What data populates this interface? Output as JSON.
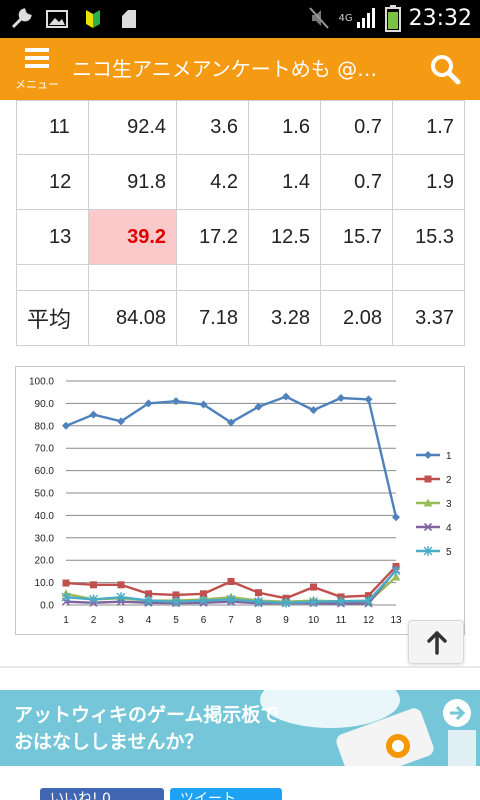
{
  "status_bar": {
    "time": "23:32",
    "network": "4G"
  },
  "app_bar": {
    "menu_label": "メニュー",
    "title": "ニコ生アニメアンケートめも @…"
  },
  "table": {
    "rows": [
      {
        "label": "11",
        "cells": [
          "92.4",
          "3.6",
          "1.6",
          "0.7",
          "1.7"
        ]
      },
      {
        "label": "12",
        "cells": [
          "91.8",
          "4.2",
          "1.4",
          "0.7",
          "1.9"
        ]
      },
      {
        "label": "13",
        "cells": [
          "39.2",
          "17.2",
          "12.5",
          "15.7",
          "15.3"
        ]
      },
      {
        "label": "",
        "cells": [
          "",
          "",
          "",
          "",
          ""
        ]
      },
      {
        "label": "平均",
        "cells": [
          "84.08",
          "7.18",
          "3.28",
          "2.08",
          "3.37"
        ]
      }
    ],
    "highlight_cell": "39.2"
  },
  "chart_data": {
    "type": "line",
    "x": [
      1,
      2,
      3,
      4,
      5,
      6,
      7,
      8,
      9,
      10,
      11,
      12,
      13
    ],
    "ylim": [
      0,
      100
    ],
    "yticks": [
      "0.0",
      "10.0",
      "20.0",
      "30.0",
      "40.0",
      "50.0",
      "60.0",
      "70.0",
      "80.0",
      "90.0",
      "100.0"
    ],
    "legend_position": "right",
    "grid": true,
    "series": [
      {
        "name": "1",
        "color": "#4f81bd",
        "values": [
          80.0,
          85.0,
          82.0,
          90.0,
          91.0,
          89.5,
          81.5,
          88.5,
          93.0,
          87.0,
          92.4,
          91.8,
          39.2
        ]
      },
      {
        "name": "2",
        "color": "#c0504d",
        "values": [
          9.8,
          9.0,
          9.0,
          5.0,
          4.5,
          5.0,
          10.5,
          5.5,
          3.0,
          8.0,
          3.6,
          4.2,
          17.2
        ]
      },
      {
        "name": "3",
        "color": "#9bbb59",
        "values": [
          5.0,
          2.5,
          3.0,
          2.0,
          2.0,
          2.5,
          3.5,
          2.0,
          1.5,
          2.0,
          1.6,
          1.4,
          12.5
        ]
      },
      {
        "name": "4",
        "color": "#8064a2",
        "values": [
          1.5,
          1.0,
          1.5,
          1.0,
          0.8,
          1.0,
          1.5,
          0.8,
          0.8,
          0.8,
          0.7,
          0.7,
          15.7
        ]
      },
      {
        "name": "5",
        "color": "#4bacc6",
        "values": [
          3.5,
          2.5,
          3.5,
          2.0,
          1.5,
          2.0,
          2.5,
          1.5,
          1.0,
          1.5,
          1.7,
          1.9,
          15.3
        ]
      }
    ]
  },
  "banner": {
    "line1": "アットウィキのゲーム掲示板で",
    "line2": "おはなししませんか？"
  },
  "social": {
    "like": "いいね! 0",
    "tweet": "ツイート"
  }
}
